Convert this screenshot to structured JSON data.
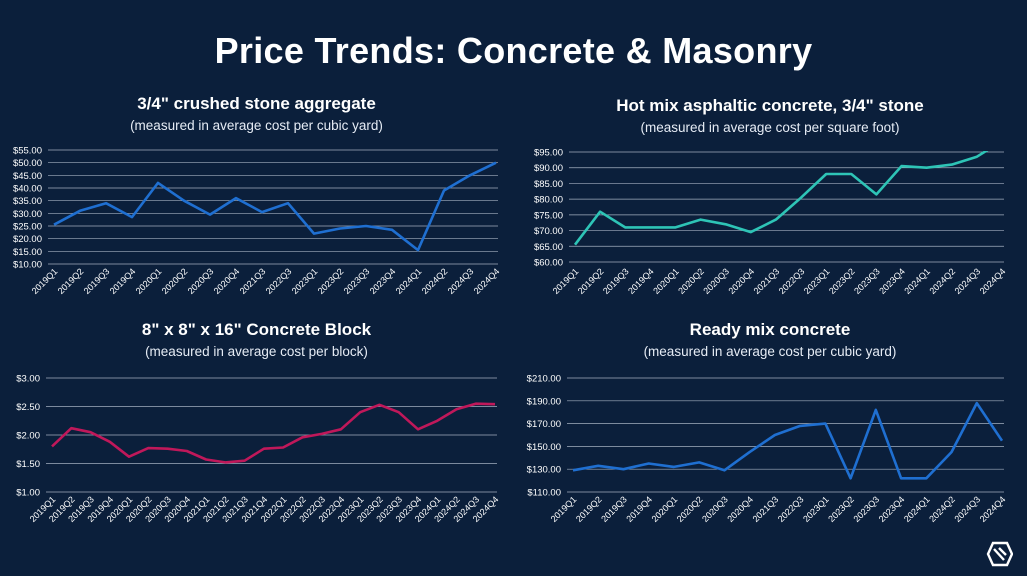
{
  "page": {
    "title": "Price Trends: Concrete & Masonry"
  },
  "chart_data": [
    {
      "type": "line",
      "title": "3/4\" crushed stone aggregate",
      "subtitle": "(measured in average cost per cubic yard)",
      "color": "#1f6fd1",
      "y_ticks": [
        "$10.00",
        "$15.00",
        "$20.00",
        "$25.00",
        "$30.00",
        "$35.00",
        "$40.00",
        "$45.00",
        "$50.00",
        "$55.00"
      ],
      "ylim": [
        10,
        55
      ],
      "categories": [
        "2019Q1",
        "2019Q2",
        "2019Q3",
        "2019Q4",
        "2020Q1",
        "2020Q2",
        "2020Q3",
        "2020Q4",
        "2021Q3",
        "2022Q3",
        "2023Q1",
        "2023Q2",
        "2023Q3",
        "2023Q4",
        "2024Q1",
        "2024Q2",
        "2024Q3",
        "2024Q4"
      ],
      "values": [
        25.5,
        31,
        34,
        28.5,
        42,
        35,
        29.5,
        36,
        30.5,
        34,
        22,
        24,
        25,
        23.5,
        15.5,
        39,
        45,
        50
      ]
    },
    {
      "type": "line",
      "title": "Hot mix asphaltic concrete, 3/4\" stone",
      "subtitle": "(measured in average cost per square foot)",
      "color": "#2ec4b6",
      "y_ticks": [
        "$60.00",
        "$65.00",
        "$70.00",
        "$75.00",
        "$80.00",
        "$85.00",
        "$90.00",
        "$95.00"
      ],
      "ylim": [
        60,
        95
      ],
      "categories": [
        "2019Q1",
        "2019Q2",
        "2019Q3",
        "2019Q4",
        "2020Q1",
        "2020Q2",
        "2020Q3",
        "2020Q4",
        "2021Q3",
        "2022Q3",
        "2023Q1",
        "2023Q2",
        "2023Q3",
        "2023Q4",
        "2024Q1",
        "2024Q2",
        "2024Q3",
        "2024Q4"
      ],
      "values": [
        65.5,
        76,
        71,
        71,
        71,
        73.5,
        72,
        69.5,
        73.5,
        80.5,
        88,
        88,
        81.5,
        90.5,
        90,
        91,
        93.5,
        98.5
      ]
    },
    {
      "type": "line",
      "title": "8\" x 8\" x 16\" Concrete Block",
      "subtitle": "(measured in average cost per block)",
      "color": "#c0185a",
      "y_ticks": [
        "$1.00",
        "$1.50",
        "$2.00",
        "$2.50",
        "$3.00"
      ],
      "ylim": [
        1,
        3
      ],
      "categories": [
        "2019Q1",
        "2019Q2",
        "2019Q3",
        "2019Q4",
        "2020Q1",
        "2020Q2",
        "2020Q3",
        "2020Q4",
        "2021Q1",
        "2021Q2",
        "2021Q3",
        "2021Q4",
        "2022Q1",
        "2022Q2",
        "2022Q3",
        "2022Q4",
        "2023Q1",
        "2023Q2",
        "2023Q3",
        "2023Q4",
        "2024Q1",
        "2024Q2",
        "2024Q3",
        "2024Q4"
      ],
      "values": [
        1.8,
        2.12,
        2.05,
        1.88,
        1.62,
        1.77,
        1.76,
        1.72,
        1.57,
        1.52,
        1.55,
        1.76,
        1.78,
        1.96,
        2.02,
        2.1,
        2.4,
        2.53,
        2.4,
        2.1,
        2.25,
        2.45,
        2.55,
        2.54
      ]
    },
    {
      "type": "line",
      "title": "Ready mix concrete",
      "subtitle": "(measured in average cost per cubic yard)",
      "color": "#1f6fd1",
      "y_ticks": [
        "$110.00",
        "$130.00",
        "$150.00",
        "$170.00",
        "$190.00",
        "$210.00"
      ],
      "ylim": [
        110,
        210
      ],
      "categories": [
        "2019Q1",
        "2019Q2",
        "2019Q3",
        "2019Q4",
        "2020Q1",
        "2020Q2",
        "2020Q3",
        "2020Q4",
        "2021Q3",
        "2022Q3",
        "2023Q1",
        "2023Q2",
        "2023Q3",
        "2023Q4",
        "2024Q1",
        "2024Q2",
        "2024Q3",
        "2024Q4"
      ],
      "values": [
        129,
        133,
        130,
        135,
        132,
        136,
        129,
        145,
        160,
        168,
        170,
        122,
        182,
        122,
        122,
        145,
        188,
        155
      ]
    }
  ]
}
